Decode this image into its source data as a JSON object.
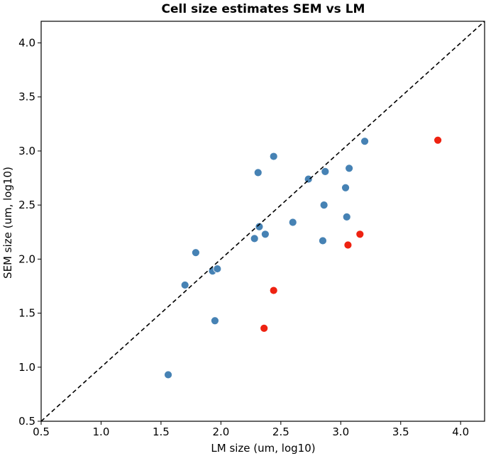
{
  "chart_data": {
    "type": "scatter",
    "title": "Cell size estimates SEM vs LM",
    "xlabel": "LM size (um, log10)",
    "ylabel": "SEM size (um, log10)",
    "xlim": [
      0.5,
      4.2
    ],
    "ylim": [
      0.5,
      4.2
    ],
    "xticks": [
      "0.5",
      "1.0",
      "1.5",
      "2.0",
      "2.5",
      "3.0",
      "3.5",
      "4.0"
    ],
    "yticks": [
      "0.5",
      "1.0",
      "1.5",
      "2.0",
      "2.5",
      "3.0",
      "3.5",
      "4.0"
    ],
    "reference_line": {
      "type": "y=x",
      "style": "dashed",
      "color": "#000000"
    },
    "colors": {
      "blue": "#4682b4",
      "red": "#ee2211"
    },
    "series": [
      {
        "name": "blue",
        "color": "#4682b4",
        "points": [
          [
            1.56,
            0.93
          ],
          [
            1.7,
            1.76
          ],
          [
            1.79,
            2.06
          ],
          [
            1.93,
            1.89
          ],
          [
            1.95,
            1.43
          ],
          [
            1.97,
            1.91
          ],
          [
            2.28,
            2.19
          ],
          [
            2.31,
            2.8
          ],
          [
            2.32,
            2.3
          ],
          [
            2.37,
            2.23
          ],
          [
            2.44,
            2.95
          ],
          [
            2.6,
            2.34
          ],
          [
            2.73,
            2.74
          ],
          [
            2.85,
            2.17
          ],
          [
            2.86,
            2.5
          ],
          [
            2.87,
            2.81
          ],
          [
            3.04,
            2.66
          ],
          [
            3.05,
            2.39
          ],
          [
            3.07,
            2.84
          ],
          [
            3.2,
            3.09
          ]
        ]
      },
      {
        "name": "red",
        "color": "#ee2211",
        "points": [
          [
            2.36,
            1.36
          ],
          [
            2.44,
            1.71
          ],
          [
            3.06,
            2.13
          ],
          [
            3.16,
            2.23
          ],
          [
            3.81,
            3.1
          ]
        ]
      }
    ]
  }
}
